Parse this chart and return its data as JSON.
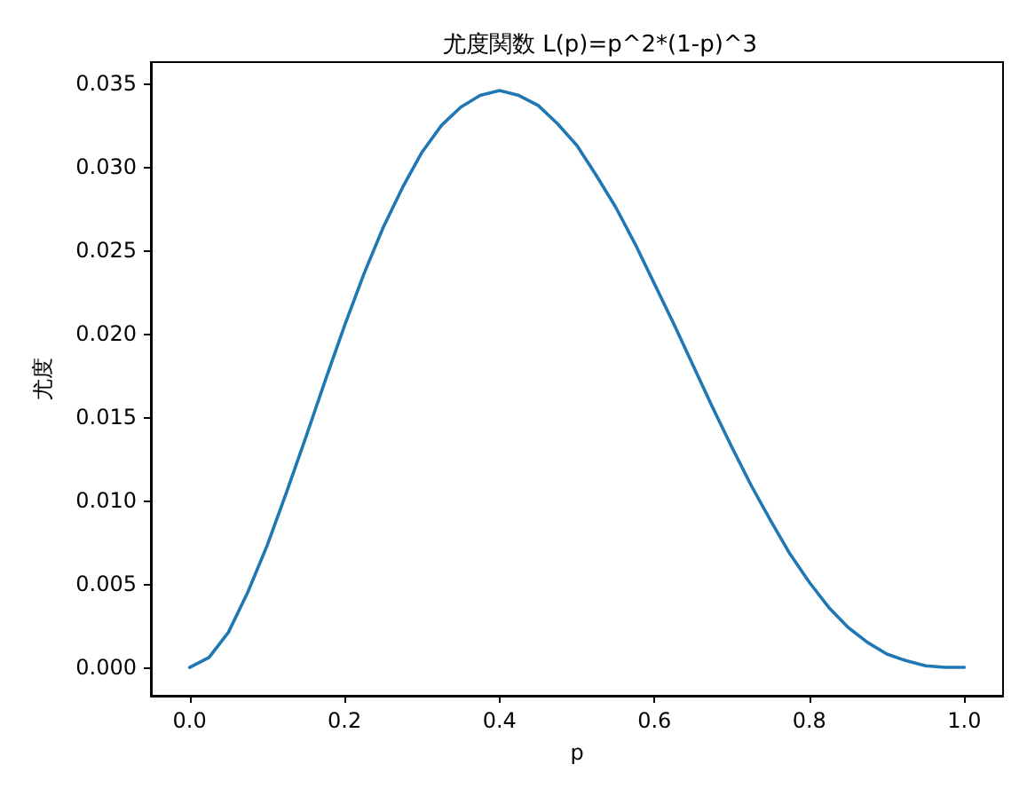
{
  "chart_data": {
    "type": "line",
    "title": "尤度関数 L(p)=p^2*(1-p)^3",
    "xlabel": "p",
    "ylabel": "尤度",
    "x": [
      0,
      0.025,
      0.05,
      0.075,
      0.1,
      0.125,
      0.15,
      0.175,
      0.2,
      0.225,
      0.25,
      0.275,
      0.3,
      0.325,
      0.35,
      0.375,
      0.4,
      0.425,
      0.45,
      0.475,
      0.5,
      0.525,
      0.55,
      0.575,
      0.6,
      0.625,
      0.65,
      0.675,
      0.7,
      0.725,
      0.75,
      0.775,
      0.8,
      0.825,
      0.85,
      0.875,
      0.9,
      0.925,
      0.95,
      0.975,
      1
    ],
    "series": [
      {
        "color": "#1f77b4",
        "values": [
          0,
          0.0006,
          0.0021,
          0.0045,
          0.0073,
          0.0105,
          0.0138,
          0.0172,
          0.0205,
          0.0236,
          0.0264,
          0.0288,
          0.0309,
          0.0325,
          0.0336,
          0.0343,
          0.0346,
          0.0343,
          0.0337,
          0.0326,
          0.0313,
          0.0295,
          0.0276,
          0.0254,
          0.023,
          0.0206,
          0.0181,
          0.0156,
          0.0132,
          0.0109,
          0.0088,
          0.0068,
          0.0051,
          0.0036,
          0.0024,
          0.0015,
          0.0008,
          0.0004,
          0.0001,
          0,
          0
        ]
      }
    ],
    "xlim": [
      -0.05,
      1.05
    ],
    "ylim": [
      -0.0017,
      0.0363
    ],
    "xticks": [
      {
        "value": 0,
        "label": "0.0"
      },
      {
        "value": 0.2,
        "label": "0.2"
      },
      {
        "value": 0.4,
        "label": "0.4"
      },
      {
        "value": 0.6,
        "label": "0.6"
      },
      {
        "value": 0.8,
        "label": "0.8"
      },
      {
        "value": 1,
        "label": "1.0"
      }
    ],
    "yticks": [
      {
        "value": 0,
        "label": "0.000"
      },
      {
        "value": 0.005,
        "label": "0.005"
      },
      {
        "value": 0.01,
        "label": "0.010"
      },
      {
        "value": 0.015,
        "label": "0.015"
      },
      {
        "value": 0.02,
        "label": "0.020"
      },
      {
        "value": 0.025,
        "label": "0.025"
      },
      {
        "value": 0.03,
        "label": "0.030"
      },
      {
        "value": 0.035,
        "label": "0.035"
      }
    ],
    "grid": false,
    "marker": "none",
    "line_style": "solid"
  }
}
